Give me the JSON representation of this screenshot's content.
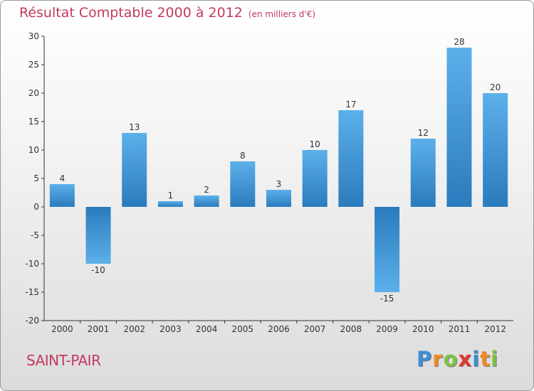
{
  "header": {
    "title": "Résultat Comptable 2000 à 2012",
    "unit": "(en milliers d'€)"
  },
  "footer": {
    "commune": "SAINT-PAIR",
    "logo_letters": [
      {
        "ch": "P",
        "color": "#3b8fd6"
      },
      {
        "ch": "r",
        "color": "#ef8a1f"
      },
      {
        "ch": "o",
        "color": "#7cc242"
      },
      {
        "ch": "x",
        "color": "#e5352f"
      },
      {
        "ch": "i",
        "color": "#3b8fd6"
      },
      {
        "ch": "t",
        "color": "#ef8a1f"
      },
      {
        "ch": "i",
        "color": "#7cc242"
      }
    ]
  },
  "chart_data": {
    "type": "bar",
    "title": "Résultat Comptable 2000 à 2012",
    "xlabel": "",
    "ylabel": "",
    "categories": [
      "2000",
      "2001",
      "2002",
      "2003",
      "2004",
      "2005",
      "2006",
      "2007",
      "2008",
      "2009",
      "2010",
      "2011",
      "2012"
    ],
    "values": [
      4,
      -10,
      13,
      1,
      2,
      8,
      3,
      10,
      17,
      -15,
      12,
      28,
      20
    ],
    "ylim": [
      -20,
      30
    ],
    "yticks": [
      30,
      25,
      20,
      15,
      10,
      5,
      0,
      -5,
      -10,
      -15,
      -20
    ],
    "grid": false,
    "bar_color_light": "#5cb0ea",
    "bar_color_dark": "#2a7bbd"
  }
}
